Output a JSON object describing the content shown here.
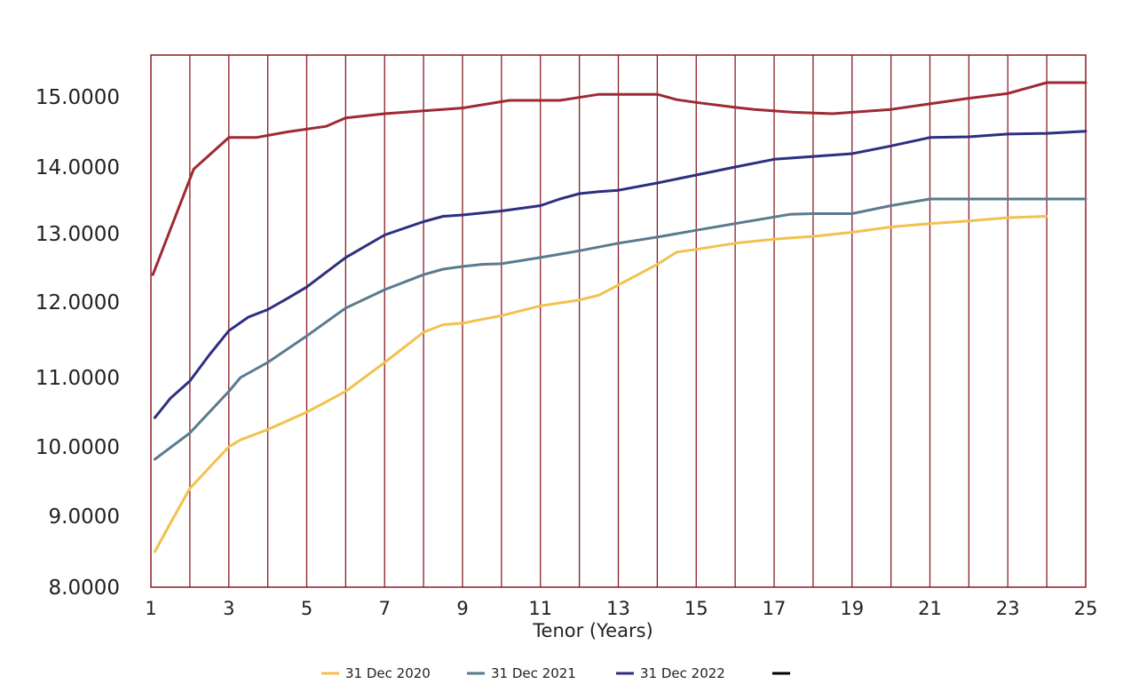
{
  "chart_data": {
    "type": "line",
    "title": "",
    "xlabel": "Tenor (Years)",
    "ylabel": "",
    "xlim": [
      1,
      25
    ],
    "ylim": [
      8.0,
      15.5
    ],
    "x_ticks": [
      "1",
      "3",
      "5",
      "7",
      "9",
      "11",
      "13",
      "15",
      "17",
      "19",
      "21",
      "23",
      "25"
    ],
    "y_ticks": [
      "8.0000",
      "9.0000",
      "10.0000",
      "11.0000",
      "12.0000",
      "13.0000",
      "14.0000",
      "15.0000"
    ],
    "grid": "vertical lines at each year, dark red",
    "legend_position": "bottom-center",
    "series": [
      {
        "name": "31 Dec 2020",
        "color": "#f2c14e",
        "x": [
          1.1,
          1.5,
          2,
          2.5,
          3,
          3.3,
          4,
          5,
          6,
          7,
          8,
          8.5,
          9,
          10,
          11,
          12,
          12.5,
          13,
          14,
          14.5,
          15,
          16,
          17,
          18,
          19,
          20,
          21,
          22,
          23,
          24
        ],
        "y": [
          8.5,
          8.9,
          9.4,
          9.7,
          10.0,
          10.1,
          10.25,
          10.5,
          10.8,
          11.2,
          11.6,
          11.7,
          11.72,
          11.82,
          11.95,
          12.03,
          12.1,
          12.25,
          12.55,
          12.73,
          12.77,
          12.86,
          12.92,
          12.96,
          13.02,
          13.1,
          13.15,
          13.19,
          13.24,
          13.26
        ]
      },
      {
        "name": "31 Dec 2021",
        "color": "#5a7a8e",
        "x": [
          1.1,
          2,
          3,
          3.3,
          4,
          5,
          6,
          7,
          8,
          8.5,
          9,
          9.5,
          10,
          11,
          12,
          13,
          14,
          15,
          16,
          17,
          17.4,
          18,
          19,
          20,
          21,
          22,
          23,
          24,
          25
        ],
        "y": [
          9.82,
          10.2,
          10.8,
          11.0,
          11.2,
          11.55,
          11.92,
          12.18,
          12.4,
          12.48,
          12.52,
          12.55,
          12.56,
          12.65,
          12.75,
          12.86,
          12.95,
          13.05,
          13.15,
          13.25,
          13.29,
          13.3,
          13.3,
          13.42,
          13.52,
          13.52,
          13.52,
          13.52,
          13.52
        ]
      },
      {
        "name": "31 Dec 2022",
        "color": "#2d2f7f",
        "x": [
          1.1,
          1.5,
          2,
          2.5,
          3,
          3.5,
          4,
          4.5,
          5,
          6,
          7,
          8,
          8.5,
          9,
          10,
          11,
          11.5,
          12,
          12.5,
          13,
          14,
          15,
          16,
          17,
          18,
          19,
          20,
          21,
          22,
          23,
          24,
          25
        ],
        "y": [
          10.42,
          10.7,
          10.95,
          11.3,
          11.62,
          11.8,
          11.9,
          12.05,
          12.22,
          12.65,
          12.98,
          13.18,
          13.26,
          13.28,
          13.34,
          13.42,
          13.52,
          13.6,
          13.63,
          13.65,
          13.76,
          13.88,
          14.0,
          14.11,
          14.15,
          14.19,
          14.3,
          14.42,
          14.43,
          14.47,
          14.48,
          14.51
        ]
      },
      {
        "name": "",
        "color": "#9e2a33",
        "x": [
          1.05,
          2.1,
          3,
          3.7,
          4.5,
          5.5,
          6,
          7,
          8,
          9,
          10.2,
          11,
          11.5,
          12.5,
          13,
          14,
          14.5,
          15,
          16,
          16.5,
          17.5,
          18.5,
          19,
          20,
          21,
          22,
          23,
          24,
          25
        ],
        "y": [
          12.4,
          13.97,
          14.42,
          14.42,
          14.5,
          14.58,
          14.7,
          14.76,
          14.8,
          14.84,
          14.95,
          14.95,
          14.95,
          15.03,
          15.03,
          15.03,
          14.96,
          14.92,
          14.85,
          14.82,
          14.78,
          14.76,
          14.78,
          14.82,
          14.9,
          14.98,
          15.04,
          15.17,
          15.17
        ]
      }
    ],
    "legend": [
      {
        "label": "31 Dec 2020",
        "color": "#f2c14e"
      },
      {
        "label": "31 Dec 2021",
        "color": "#5a7a8e"
      },
      {
        "label": "31 Dec 2022",
        "color": "#2d2f7f"
      },
      {
        "label": "",
        "color": "#000000"
      }
    ]
  }
}
